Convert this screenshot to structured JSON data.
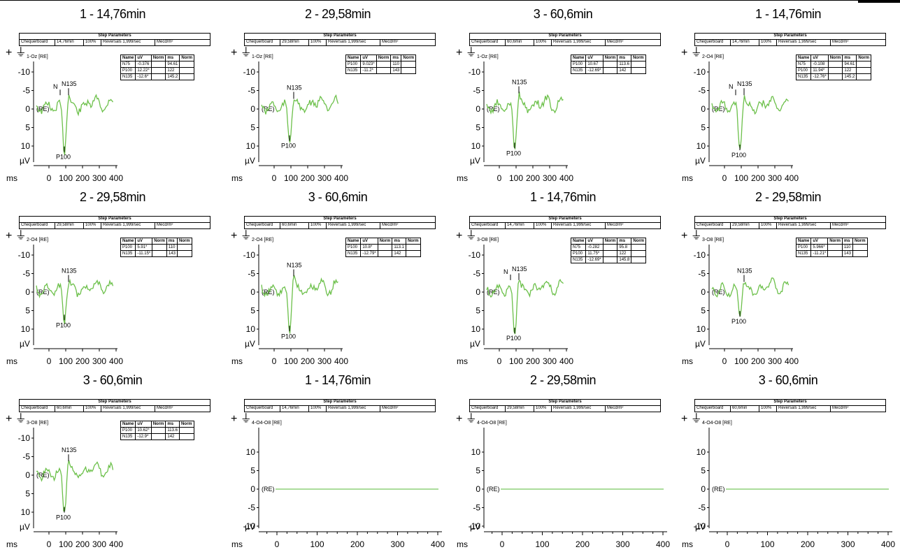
{
  "colors": {
    "trace": "#6cc04a",
    "flat": "#8fd17a"
  },
  "step_header": "Step Parameters",
  "unit_ms": "ms",
  "unit_uv": "µV",
  "re_label": "(RE)",
  "plus_symbol": "+ ⏚",
  "panels": [
    {
      "title": "1 - 14,76min",
      "step": [
        "Chequerboard",
        "14,76min",
        "100%",
        "Reversals 1,999/sec",
        "Mecd/m²"
      ],
      "channel": "1-Oz [RE]",
      "mode": "erp",
      "params": [
        [
          "N75",
          "-0.376",
          "",
          "94.61",
          ""
        ],
        [
          "P100",
          "12.22*",
          "",
          "122",
          ""
        ],
        [
          "N135",
          "-12.6*",
          "",
          "145.2",
          ""
        ]
      ],
      "p100_y": 11.5,
      "n135_y": -2.5,
      "n75_label": true
    },
    {
      "title": "2 - 29,58min",
      "step": [
        "Chequerboard",
        "29,58min",
        "100%",
        "Reversals 1,999/sec",
        "Mecd/m²"
      ],
      "channel": "1-Oz [RE]",
      "mode": "erp",
      "params": [
        [
          "P100",
          "9.023*",
          "",
          "110",
          ""
        ],
        [
          "N135",
          "-11.2*",
          "",
          "143",
          ""
        ]
      ],
      "p100_y": 8.5,
      "n135_y": -1.5,
      "n75_label": false
    },
    {
      "title": "3 - 60,6min",
      "step": [
        "Chequerboard",
        "60,6min",
        "100%",
        "Reversals 1,999/sec",
        "Mecd/m²"
      ],
      "channel": "1-Oz [RE]",
      "mode": "erp",
      "params": [
        [
          "P100",
          "10.67",
          "",
          "113.6",
          ""
        ],
        [
          "N135",
          "-12.69*",
          "",
          "142",
          ""
        ]
      ],
      "p100_y": 10.5,
      "n135_y": -3.0,
      "n75_label": false
    },
    {
      "title": "1 - 14,76min",
      "step": [
        "Chequerboard",
        "14,76min",
        "100%",
        "Reversals 1,999/sec",
        "Mecd/m²"
      ],
      "channel": "2-O4 [RE]",
      "mode": "erp",
      "params": [
        [
          "N75",
          "-0.108",
          "",
          "94.61",
          ""
        ],
        [
          "P100",
          "11.94*",
          "",
          "122",
          ""
        ],
        [
          "N135",
          "-12.76*",
          "",
          "145.2",
          ""
        ]
      ],
      "p100_y": 11.0,
      "n135_y": -2.5,
      "n75_label": true
    },
    {
      "title": "2 - 29,58min",
      "step": [
        "Chequerboard",
        "29,58min",
        "100%",
        "Reversals 1,999/sec",
        "Mecd/m²"
      ],
      "channel": "2-O4 [RE]",
      "mode": "erp",
      "params": [
        [
          "P100",
          "5.91*",
          "",
          "110",
          ""
        ],
        [
          "N135",
          "-11.15*",
          "",
          "143",
          ""
        ]
      ],
      "p100_y": 7.5,
      "n135_y": -1.5,
      "n75_label": false
    },
    {
      "title": "3 - 60,6min",
      "step": [
        "Chequerboard",
        "60,6min",
        "100%",
        "Reversals 1,999/sec",
        "Mecd/m²"
      ],
      "channel": "2-O4 [RE]",
      "mode": "erp",
      "params": [
        [
          "P100",
          "10.8*",
          "",
          "113.1",
          ""
        ],
        [
          "N135",
          "-12.79*",
          "",
          "142",
          ""
        ]
      ],
      "p100_y": 10.5,
      "n135_y": -3.0,
      "n75_label": false
    },
    {
      "title": "1 - 14,76min",
      "step": [
        "Chequerboard",
        "14,76min",
        "100%",
        "Reversals 1,999/sec",
        "Mecd/m²"
      ],
      "channel": "3-O8 [RE]",
      "mode": "erp",
      "params": [
        [
          "N75",
          "-0.282",
          "",
          "95.8",
          ""
        ],
        [
          "P100",
          "11.75*",
          "",
          "122",
          ""
        ],
        [
          "N135",
          "-12.69*",
          "",
          "145.8",
          ""
        ]
      ],
      "p100_y": 11.0,
      "n135_y": -2.0,
      "n75_label": true
    },
    {
      "title": "2 - 29,58min",
      "step": [
        "Chequerboard",
        "29,58min",
        "100%",
        "Reversals 1,999/sec",
        "Mecd/m²"
      ],
      "channel": "3-O8 [RE]",
      "mode": "erp",
      "params": [
        [
          "P100",
          "5.966*",
          "",
          "110",
          ""
        ],
        [
          "N135",
          "-11.21*",
          "",
          "143",
          ""
        ]
      ],
      "p100_y": 6.5,
      "n135_y": -1.5,
      "n75_label": false
    },
    {
      "title": "3 - 60,6min",
      "step": [
        "Chequerboard",
        "60,6min",
        "100%",
        "Reversals 1,999/sec",
        "Mecd/m²"
      ],
      "channel": "3-O8 [RE]",
      "mode": "erp",
      "params": [
        [
          "P100",
          "10.62*",
          "",
          "113.6",
          ""
        ],
        [
          "N135",
          "-12.9*",
          "",
          "142",
          ""
        ]
      ],
      "p100_y": 10.0,
      "n135_y": -2.5,
      "n75_label": false
    },
    {
      "title": "1 - 14,76min",
      "step": [
        "Chequerboard",
        "14,76min",
        "100%",
        "Reversals 1,999/sec",
        "Mecd/m²"
      ],
      "channel": "4-O4-O8 [RE]",
      "mode": "flat",
      "params": []
    },
    {
      "title": "2 - 29,58min",
      "step": [
        "Chequerboard",
        "29,58min",
        "100%",
        "Reversals 1,999/sec",
        "Mecd/m²"
      ],
      "channel": "4-O4-O8 [RE]",
      "mode": "flat",
      "params": []
    },
    {
      "title": "3 - 60,6min",
      "step": [
        "Chequerboard",
        "60,6min",
        "100%",
        "Reversals 1,999/sec",
        "Mecd/m²"
      ],
      "channel": "4-O4-O8 [RE]",
      "mode": "flat",
      "params": []
    }
  ],
  "param_header": [
    "Name",
    "uV",
    "Norm",
    "ms",
    "Norm"
  ],
  "chart_data": {
    "type": "line",
    "x_unit": "ms",
    "y_unit": "µV",
    "erp_panels": {
      "yticks": [
        -10,
        -5,
        0,
        5,
        10
      ],
      "ylim": [
        -12,
        14
      ],
      "xticks": [
        0,
        100,
        200,
        300,
        400
      ],
      "xlim": [
        -40,
        420
      ],
      "y_inverted": true
    },
    "flat_panels": {
      "yticks": [
        10,
        5,
        0,
        -5,
        -10
      ],
      "ylim": [
        -14,
        14
      ],
      "xticks": [
        0,
        100,
        200,
        300,
        400
      ],
      "xlim": [
        -40,
        420
      ],
      "y_inverted": false,
      "values_approx": 0
    }
  }
}
